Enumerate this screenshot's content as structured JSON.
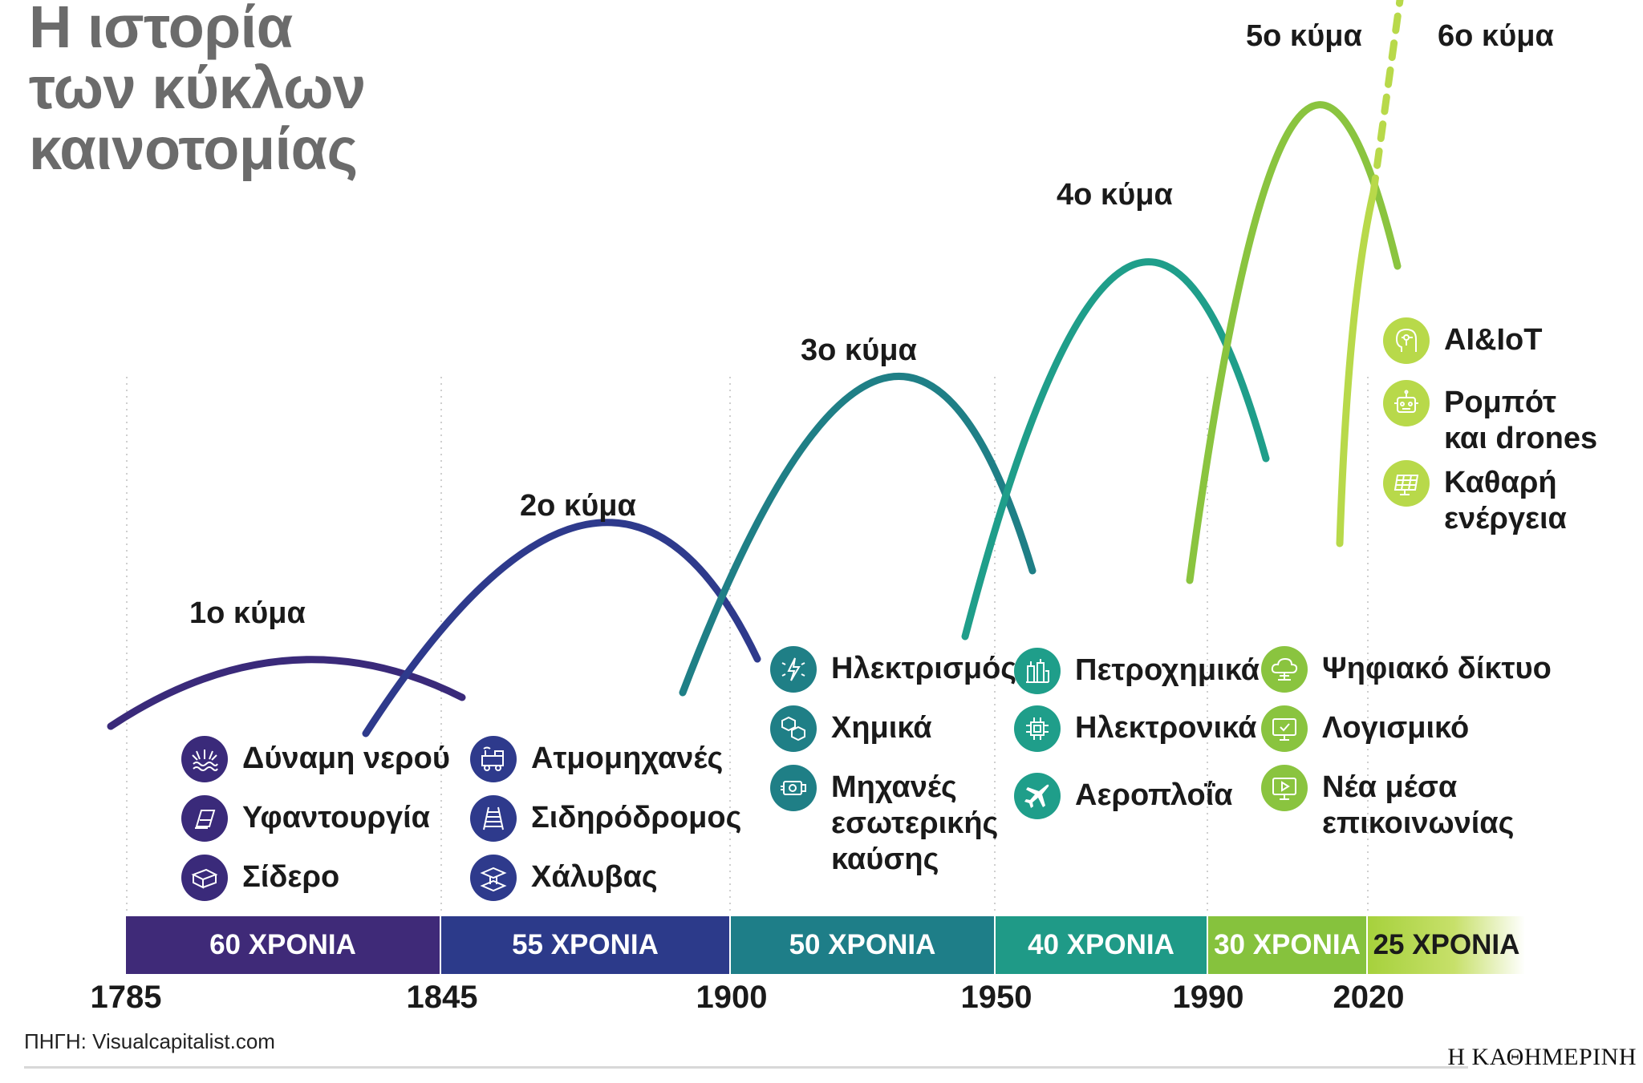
{
  "title": [
    "Η ιστορία",
    "των κύκλων",
    "καινοτομίας"
  ],
  "colors": {
    "wave1": "#3a2a7a",
    "wave2": "#2e3a8c",
    "wave3": "#1f7f86",
    "wave4": "#1f9e8a",
    "wave5": "#8ac43f",
    "wave6": "#b8d94a"
  },
  "waves": [
    {
      "label": "1ο κύμα",
      "items": [
        {
          "icon": "water-power-icon",
          "text": "Δύναμη νερού"
        },
        {
          "icon": "textile-icon",
          "text": "Υφαντουργία"
        },
        {
          "icon": "iron-icon",
          "text": "Σίδερο"
        }
      ]
    },
    {
      "label": "2ο κύμα",
      "items": [
        {
          "icon": "steam-engine-icon",
          "text": "Ατμομηχανές"
        },
        {
          "icon": "railway-icon",
          "text": "Σιδηρόδρομος"
        },
        {
          "icon": "steel-icon",
          "text": "Χάλυβας"
        }
      ]
    },
    {
      "label": "3ο κύμα",
      "items": [
        {
          "icon": "electricity-icon",
          "text": "Ηλεκτρισμός"
        },
        {
          "icon": "chemicals-icon",
          "text": "Χημικά"
        },
        {
          "icon": "combustion-engine-icon",
          "text": "Μηχανές\nεσωτερικής\nκαύσης"
        }
      ]
    },
    {
      "label": "4ο κύμα",
      "items": [
        {
          "icon": "petrochemicals-icon",
          "text": "Πετροχημικά"
        },
        {
          "icon": "electronics-icon",
          "text": "Ηλεκτρονικά"
        },
        {
          "icon": "aviation-icon",
          "text": "Αεροπλοΐα"
        }
      ]
    },
    {
      "label": "5ο κύμα",
      "items": [
        {
          "icon": "digital-network-icon",
          "text": "Ψηφιακό δίκτυο"
        },
        {
          "icon": "software-icon",
          "text": "Λογισμικό"
        },
        {
          "icon": "new-media-icon",
          "text": "Νέα μέσα\nεπικοινωνίας"
        }
      ]
    },
    {
      "label": "6ο κύμα",
      "items": [
        {
          "icon": "ai-iot-icon",
          "text": "AI&IoT"
        },
        {
          "icon": "robot-icon",
          "text": "Ρομπότ\nκαι drones"
        },
        {
          "icon": "solar-panel-icon",
          "text": "Καθαρή\nενέργεια"
        }
      ]
    }
  ],
  "periods": [
    "60 ΧΡΟΝΙΑ",
    "55 ΧΡΟΝΙΑ",
    "50 ΧΡΟΝΙΑ",
    "40 ΧΡΟΝΙΑ",
    "30 ΧΡΟΝΙΑ",
    "25 ΧΡΟΝΙΑ"
  ],
  "years": [
    "1785",
    "1845",
    "1900",
    "1950",
    "1990",
    "2020"
  ],
  "source": "ΠΗΓΗ: Visualcapitalist.com",
  "brand": "Η ΚΑΘΗΜΕΡΙΝΗ"
}
